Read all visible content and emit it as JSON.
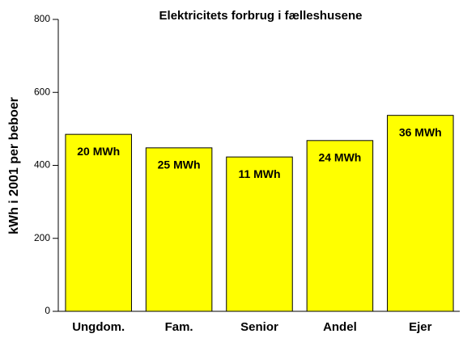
{
  "chart_data": {
    "type": "bar",
    "title": "Elektricitets forbrug i fælleshusene",
    "y_label": "kWh i 2001 per beboer",
    "categories": [
      "Ungdom.",
      "Fam.",
      "Senior",
      "Andel",
      "Ejer"
    ],
    "values": [
      485,
      448,
      423,
      468,
      537
    ],
    "annotations": [
      "20 MWh",
      "25 MWh",
      "11 MWh",
      "24 MWh",
      "36 MWh"
    ],
    "color": "#ffff00",
    "ylim": [
      0,
      800
    ],
    "yticks": [
      0,
      200,
      400,
      600,
      800
    ],
    "grid": false
  }
}
